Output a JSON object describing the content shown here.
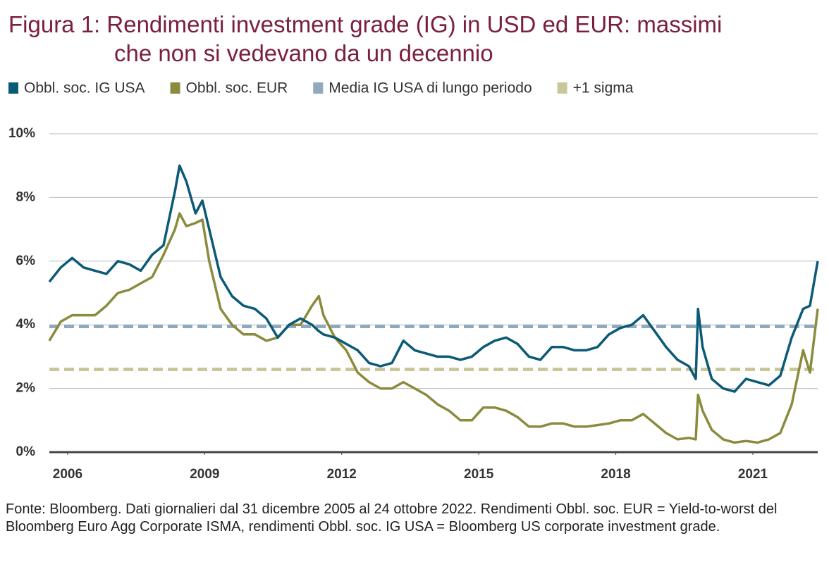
{
  "chart_data": {
    "type": "line",
    "title_lines": [
      "Figura 1: Rendimenti investment grade (IG) in USD ed EUR: massimi",
      "che non si vedevano da un decennio"
    ],
    "x": [
      2006.0,
      2006.25,
      2006.5,
      2006.75,
      2007.0,
      2007.25,
      2007.5,
      2007.75,
      2008.0,
      2008.25,
      2008.5,
      2008.75,
      2008.85,
      2009.0,
      2009.2,
      2009.35,
      2009.5,
      2009.75,
      2010.0,
      2010.25,
      2010.5,
      2010.75,
      2011.0,
      2011.25,
      2011.5,
      2011.75,
      2011.9,
      2012.0,
      2012.25,
      2012.5,
      2012.75,
      2013.0,
      2013.25,
      2013.5,
      2013.75,
      2014.0,
      2014.25,
      2014.5,
      2014.75,
      2015.0,
      2015.25,
      2015.5,
      2015.75,
      2016.0,
      2016.25,
      2016.5,
      2016.75,
      2017.0,
      2017.25,
      2017.5,
      2017.75,
      2018.0,
      2018.25,
      2018.5,
      2018.75,
      2019.0,
      2019.25,
      2019.5,
      2019.75,
      2020.0,
      2020.15,
      2020.2,
      2020.3,
      2020.5,
      2020.75,
      2021.0,
      2021.25,
      2021.5,
      2021.75,
      2022.0,
      2022.25,
      2022.5,
      2022.65,
      2022.82
    ],
    "series": [
      {
        "name": "Obbl. soc. IG USA",
        "color": "#0b5a76",
        "values": [
          5.35,
          5.8,
          6.1,
          5.8,
          5.7,
          5.6,
          6.0,
          5.9,
          5.7,
          6.2,
          6.5,
          8.2,
          9.0,
          8.5,
          7.5,
          7.9,
          7.0,
          5.5,
          4.9,
          4.6,
          4.5,
          4.2,
          3.6,
          4.0,
          4.2,
          4.0,
          3.8,
          3.7,
          3.6,
          3.4,
          3.2,
          2.8,
          2.7,
          2.8,
          3.5,
          3.2,
          3.1,
          3.0,
          3.0,
          2.9,
          3.0,
          3.3,
          3.5,
          3.6,
          3.4,
          3.0,
          2.9,
          3.3,
          3.3,
          3.2,
          3.2,
          3.3,
          3.7,
          3.9,
          4.0,
          4.3,
          3.8,
          3.3,
          2.9,
          2.7,
          2.3,
          4.5,
          3.3,
          2.3,
          2.0,
          1.9,
          2.3,
          2.2,
          2.1,
          2.4,
          3.6,
          4.5,
          4.6,
          6.0
        ]
      },
      {
        "name": "Obbl. soc. EUR",
        "color": "#8b8b3d",
        "values": [
          3.5,
          4.1,
          4.3,
          4.3,
          4.3,
          4.6,
          5.0,
          5.1,
          5.3,
          5.5,
          6.2,
          7.0,
          7.5,
          7.1,
          7.2,
          7.3,
          6.0,
          4.5,
          4.0,
          3.7,
          3.7,
          3.5,
          3.6,
          4.0,
          4.0,
          4.6,
          4.9,
          4.3,
          3.6,
          3.2,
          2.5,
          2.2,
          2.0,
          2.0,
          2.2,
          2.0,
          1.8,
          1.5,
          1.3,
          1.0,
          1.0,
          1.4,
          1.4,
          1.3,
          1.1,
          0.8,
          0.8,
          0.9,
          0.9,
          0.8,
          0.8,
          0.85,
          0.9,
          1.0,
          1.0,
          1.2,
          0.9,
          0.6,
          0.4,
          0.45,
          0.4,
          1.8,
          1.3,
          0.7,
          0.4,
          0.3,
          0.35,
          0.3,
          0.4,
          0.6,
          1.5,
          3.2,
          2.5,
          4.5
        ]
      }
    ],
    "reference_lines": [
      {
        "name": "Media IG USA di lungo periodo",
        "color": "#8fa9bd",
        "value": 3.95
      },
      {
        "name": "+1 sigma",
        "color": "#c9c79a",
        "value": 2.6
      }
    ],
    "xlim": [
      2006.0,
      2022.82
    ],
    "xticks": [
      {
        "value": 2006.4,
        "label": "2006"
      },
      {
        "value": 2009.4,
        "label": "2009"
      },
      {
        "value": 2012.4,
        "label": "2012"
      },
      {
        "value": 2015.4,
        "label": "2015"
      },
      {
        "value": 2018.4,
        "label": "2018"
      },
      {
        "value": 2021.4,
        "label": "2021"
      }
    ],
    "ylim": [
      0,
      10
    ],
    "yticks": [
      {
        "value": 0,
        "label": "0%"
      },
      {
        "value": 2,
        "label": "2%"
      },
      {
        "value": 4,
        "label": "4%"
      },
      {
        "value": 6,
        "label": "6%"
      },
      {
        "value": 8,
        "label": "8%"
      },
      {
        "value": 10,
        "label": "10%"
      }
    ],
    "grid": true,
    "note": "Fonte: Bloomberg. Dati giornalieri dal 31 dicembre 2005 al 24 ottobre 2022. Rendimenti Obbl. soc. EUR = Yield-to-worst del Bloomberg Euro Agg Corporate ISMA, rendimenti Obbl. soc. IG USA = Bloomberg US corporate investment grade."
  }
}
